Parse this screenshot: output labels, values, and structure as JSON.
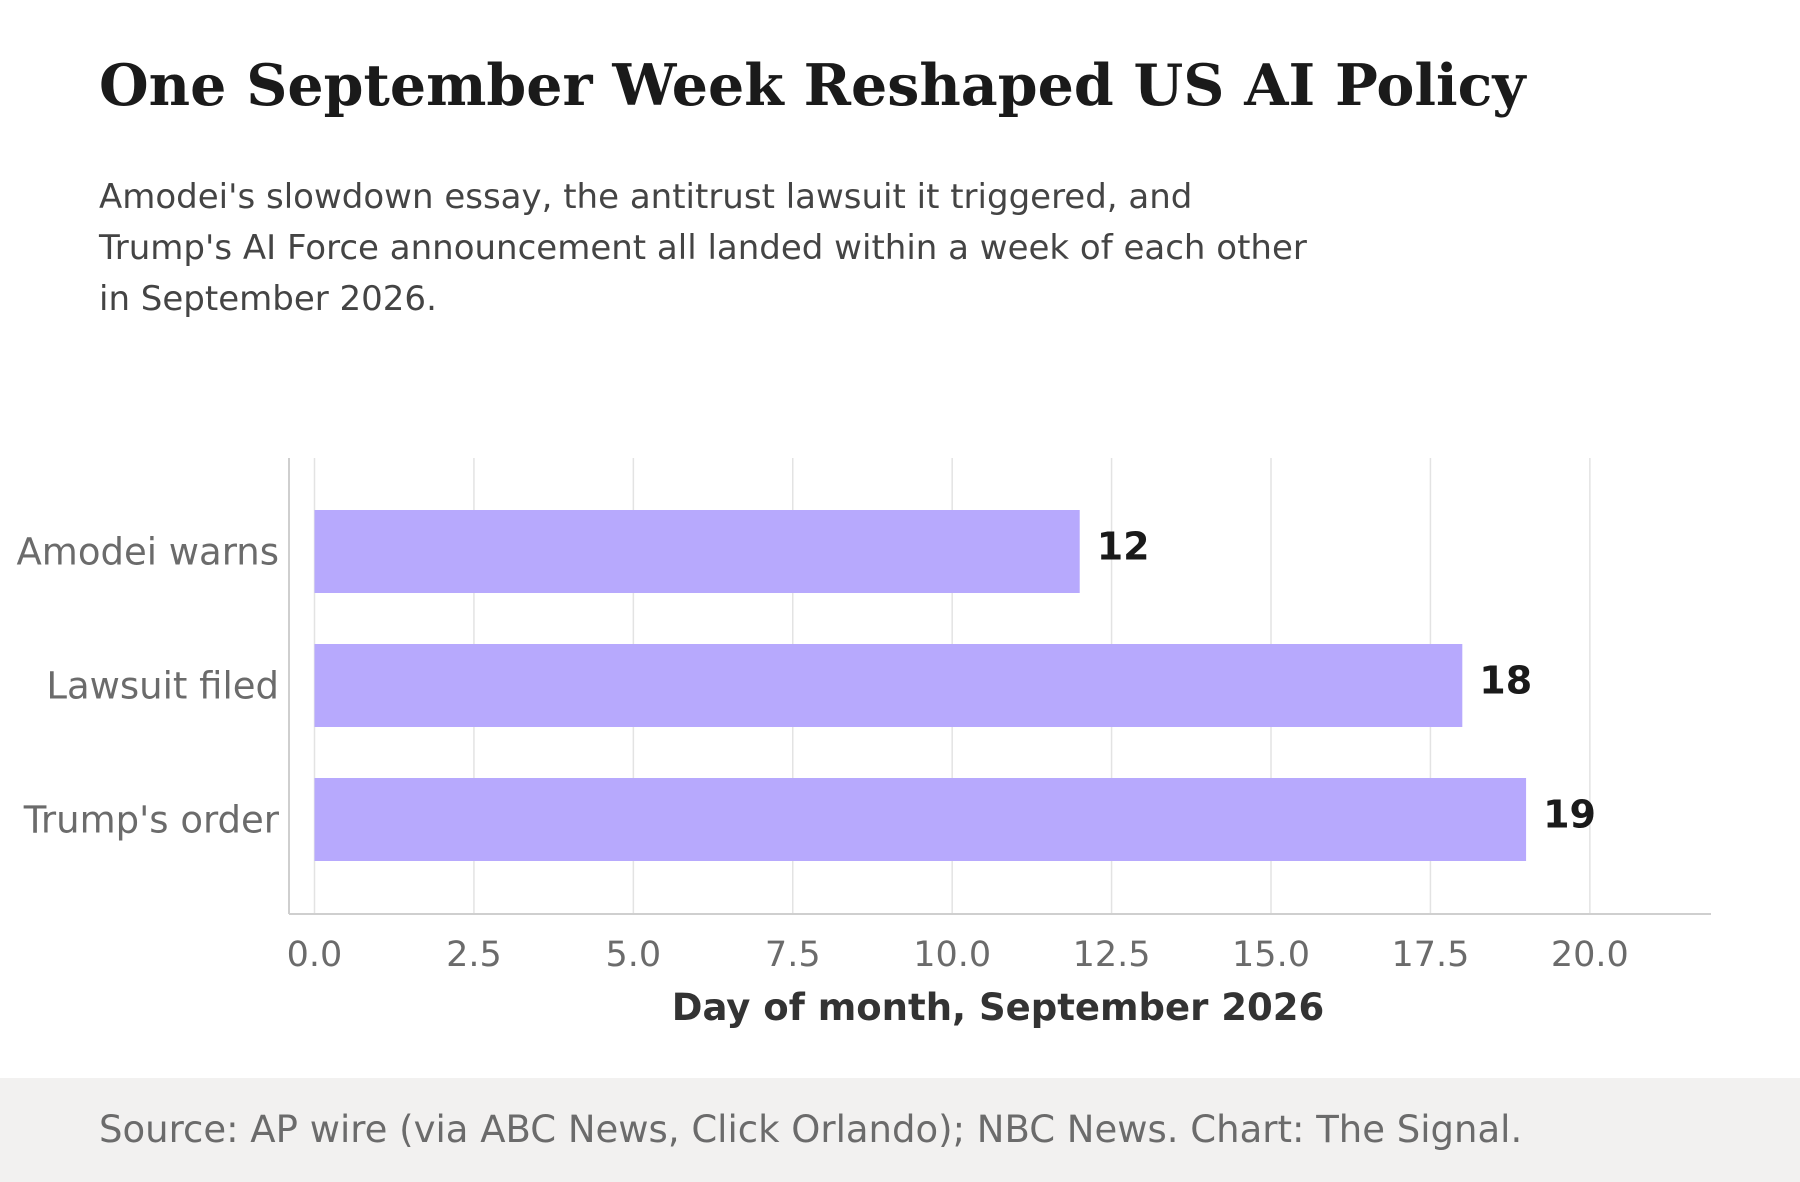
{
  "header": {
    "title": "One September Week Reshaped US AI Policy",
    "subtitle_lines": [
      "Amodei's slowdown essay, the antitrust lawsuit it triggered, and",
      "Trump's AI Force announcement all landed within a week of each other",
      "in September 2026."
    ]
  },
  "footer": {
    "source": "Source: AP wire (via ABC News, Click Orlando); NBC News. Chart: The Signal."
  },
  "colors": {
    "bar": "#b7a9fd",
    "grid": "#e3e3e3",
    "axis": "#cfcfcf",
    "tick_label": "#6b6b6b",
    "value_label": "#1a1a1a",
    "axis_title": "#333333",
    "footer_bg": "#f2f1f0"
  },
  "chart_data": {
    "type": "bar",
    "orientation": "horizontal",
    "categories": [
      "Amodei warns",
      "Lawsuit filed",
      "Trump's order"
    ],
    "values": [
      12,
      18,
      19
    ],
    "xlabel": "Day of month, September 2026",
    "ylabel": "",
    "xlim": [
      -0.4,
      21.9
    ],
    "xticks": [
      0,
      2.5,
      5,
      7.5,
      10,
      12.5,
      15,
      17.5,
      20
    ],
    "xtick_labels": [
      "0.0",
      "2.5",
      "5.0",
      "7.5",
      "10.0",
      "12.5",
      "15.0",
      "17.5",
      "20.0"
    ],
    "grid": "vertical",
    "legend": "none"
  }
}
